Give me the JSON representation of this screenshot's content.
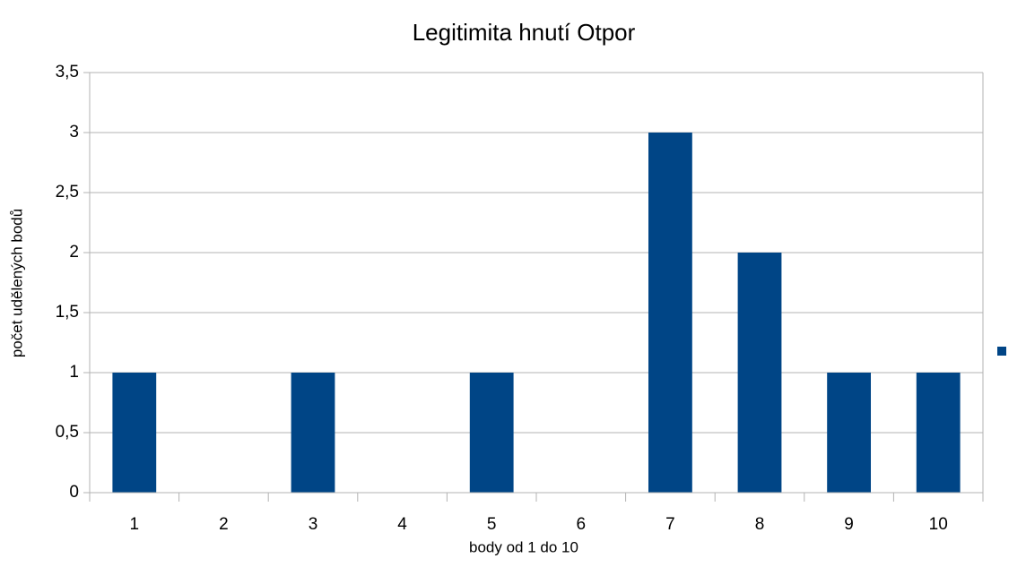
{
  "chart_data": {
    "type": "bar",
    "title": "Legitimita hnutí  Otpor",
    "x_label": "body od 1 do 10",
    "y_label": "počet udělených bodů",
    "categories": [
      "1",
      "2",
      "3",
      "4",
      "5",
      "6",
      "7",
      "8",
      "9",
      "10"
    ],
    "values": [
      1,
      0,
      1,
      0,
      1,
      0,
      3,
      2,
      1,
      1
    ],
    "color": "#004586",
    "ylim": [
      0,
      3.5
    ],
    "yticks": [
      0,
      {
        "value": 0.5,
        "label": "0,5"
      },
      1,
      {
        "value": 1.5,
        "label": "1,5"
      },
      2,
      {
        "value": 2.5,
        "label": "2,5"
      },
      3,
      {
        "value": 3.5,
        "label": "3,5"
      }
    ],
    "grid": true
  }
}
